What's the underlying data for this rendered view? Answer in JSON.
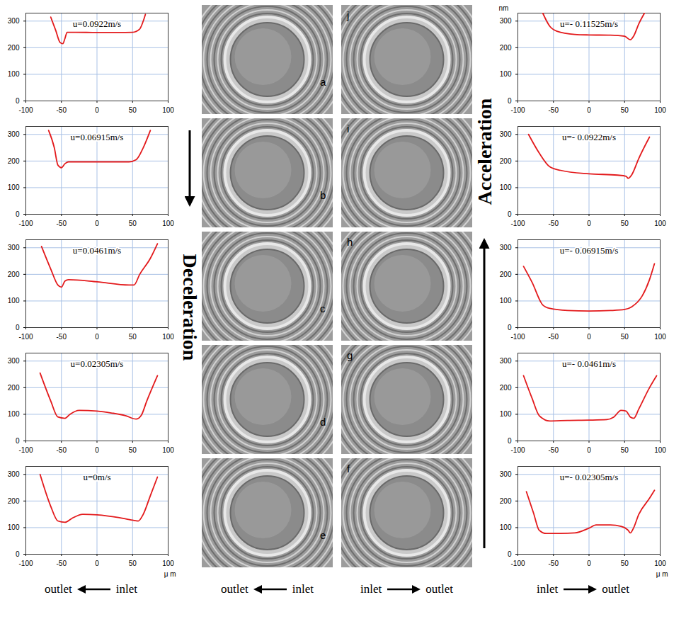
{
  "chart_data": [
    {
      "type": "line",
      "title": "u=0.0922m/s",
      "color": "#e31a1c",
      "grid": true,
      "xlim": [
        -100,
        100
      ],
      "ylim": [
        0,
        330
      ],
      "xticks": [
        -100,
        -50,
        0,
        50,
        100
      ],
      "yticks": [
        0,
        100,
        200,
        300
      ],
      "x": [
        -65,
        -58,
        -52,
        -48,
        -45,
        -42,
        -30,
        0,
        30,
        50,
        60,
        65,
        68
      ],
      "values": [
        315,
        265,
        220,
        215,
        235,
        258,
        258,
        257,
        257,
        258,
        270,
        300,
        325
      ]
    },
    {
      "type": "line",
      "title": "u=0.06915m/s",
      "color": "#e31a1c",
      "grid": true,
      "xlim": [
        -100,
        100
      ],
      "ylim": [
        0,
        330
      ],
      "xticks": [
        -100,
        -50,
        0,
        50,
        100
      ],
      "yticks": [
        0,
        100,
        200,
        300
      ],
      "x": [
        -68,
        -60,
        -55,
        -50,
        -45,
        -40,
        0,
        45,
        55,
        65,
        75
      ],
      "values": [
        315,
        250,
        185,
        175,
        190,
        197,
        197,
        197,
        205,
        250,
        315
      ]
    },
    {
      "type": "line",
      "title": "u=0.0461m/s",
      "color": "#e31a1c",
      "grid": true,
      "xlim": [
        -100,
        100
      ],
      "ylim": [
        0,
        330
      ],
      "xticks": [
        -100,
        -50,
        0,
        50,
        100
      ],
      "yticks": [
        0,
        100,
        200,
        300
      ],
      "x": [
        -78,
        -65,
        -55,
        -50,
        -45,
        -40,
        0,
        45,
        52,
        60,
        75,
        85
      ],
      "values": [
        305,
        220,
        160,
        152,
        175,
        180,
        172,
        160,
        160,
        200,
        260,
        315
      ]
    },
    {
      "type": "line",
      "title": "u=0.02305m/s",
      "color": "#e31a1c",
      "grid": true,
      "xlim": [
        -100,
        100
      ],
      "ylim": [
        0,
        330
      ],
      "xticks": [
        -100,
        -50,
        0,
        50,
        100
      ],
      "yticks": [
        0,
        100,
        200,
        300
      ],
      "x": [
        -80,
        -65,
        -55,
        -45,
        -38,
        -25,
        0,
        20,
        40,
        55,
        62,
        70,
        85
      ],
      "values": [
        255,
        150,
        90,
        85,
        100,
        115,
        112,
        105,
        95,
        82,
        95,
        150,
        245
      ]
    },
    {
      "type": "line",
      "title": "u=0m/s",
      "color": "#e31a1c",
      "grid": true,
      "x_label": "μ m",
      "xlim": [
        -100,
        100
      ],
      "ylim": [
        0,
        330
      ],
      "xticks": [
        -100,
        -50,
        0,
        50,
        100
      ],
      "yticks": [
        0,
        100,
        200,
        300
      ],
      "x": [
        -80,
        -65,
        -55,
        -45,
        -35,
        -20,
        0,
        30,
        50,
        58,
        65,
        75,
        85
      ],
      "values": [
        300,
        180,
        125,
        120,
        135,
        150,
        148,
        138,
        128,
        125,
        150,
        220,
        290
      ]
    },
    {
      "type": "line",
      "title": "u=- 0.11525m/s",
      "color": "#e31a1c",
      "grid": true,
      "y_label": "nm",
      "xlim": [
        -100,
        100
      ],
      "ylim": [
        0,
        330
      ],
      "xticks": [
        -100,
        -50,
        0,
        50,
        100
      ],
      "yticks": [
        0,
        100,
        200,
        300
      ],
      "x": [
        -65,
        -55,
        -45,
        -20,
        0,
        30,
        50,
        58,
        63,
        70,
        78
      ],
      "values": [
        330,
        280,
        262,
        250,
        248,
        247,
        243,
        230,
        245,
        290,
        330
      ]
    },
    {
      "type": "line",
      "title": "u=- 0.0922m/s",
      "color": "#e31a1c",
      "grid": true,
      "xlim": [
        -100,
        100
      ],
      "ylim": [
        0,
        330
      ],
      "xticks": [
        -100,
        -50,
        0,
        50,
        100
      ],
      "yticks": [
        0,
        100,
        200,
        300
      ],
      "x": [
        -85,
        -70,
        -55,
        -40,
        0,
        40,
        52,
        55,
        60,
        70,
        85
      ],
      "values": [
        300,
        230,
        178,
        165,
        152,
        147,
        143,
        135,
        148,
        210,
        290
      ]
    },
    {
      "type": "line",
      "title": "u=- 0.06915m/s",
      "color": "#e31a1c",
      "grid": true,
      "xlim": [
        -100,
        100
      ],
      "ylim": [
        0,
        330
      ],
      "xticks": [
        -100,
        -50,
        0,
        50,
        100
      ],
      "yticks": [
        0,
        100,
        200,
        300
      ],
      "x": [
        -92,
        -80,
        -65,
        -55,
        -30,
        0,
        30,
        50,
        60,
        75,
        85,
        92
      ],
      "values": [
        230,
        170,
        85,
        72,
        64,
        62,
        64,
        68,
        78,
        120,
        180,
        240
      ]
    },
    {
      "type": "line",
      "title": "u=- 0.0461m/s",
      "color": "#e31a1c",
      "grid": true,
      "xlim": [
        -100,
        100
      ],
      "ylim": [
        0,
        330
      ],
      "xticks": [
        -100,
        -50,
        0,
        50,
        100
      ],
      "yticks": [
        0,
        100,
        200,
        300
      ],
      "x": [
        -92,
        -80,
        -70,
        -55,
        -30,
        0,
        25,
        35,
        45,
        52,
        58,
        63,
        70,
        85,
        95
      ],
      "values": [
        245,
        160,
        95,
        75,
        77,
        78,
        80,
        90,
        115,
        112,
        90,
        85,
        120,
        200,
        245
      ]
    },
    {
      "type": "line",
      "title": "u=- 0.02305m/s",
      "color": "#e31a1c",
      "grid": true,
      "x_label": "μ m",
      "xlim": [
        -100,
        100
      ],
      "ylim": [
        0,
        330
      ],
      "xticks": [
        -100,
        -50,
        0,
        50,
        100
      ],
      "yticks": [
        0,
        100,
        200,
        300
      ],
      "x": [
        -88,
        -78,
        -70,
        -60,
        -40,
        -20,
        0,
        10,
        30,
        45,
        55,
        58,
        62,
        70,
        85,
        92
      ],
      "values": [
        235,
        155,
        90,
        78,
        78,
        80,
        98,
        110,
        110,
        105,
        90,
        80,
        95,
        150,
        210,
        240
      ]
    }
  ],
  "images": [
    [
      "a",
      "b",
      "c",
      "d",
      "e"
    ],
    [
      "j",
      "i",
      "h",
      "g",
      "f"
    ]
  ],
  "arrows": [
    {
      "text": "Deceleration",
      "direction": "down"
    },
    {
      "text": "Acceleration",
      "direction": "up"
    }
  ],
  "flow_labels": [
    {
      "text": [
        "outlet",
        "inlet"
      ],
      "arrow": "left"
    },
    {
      "text": [
        "outlet",
        "inlet"
      ],
      "arrow": "left"
    },
    {
      "text": [
        "inlet",
        "outlet"
      ],
      "arrow": "right"
    },
    {
      "text": [
        "inlet",
        "outlet"
      ],
      "arrow": "right"
    }
  ]
}
